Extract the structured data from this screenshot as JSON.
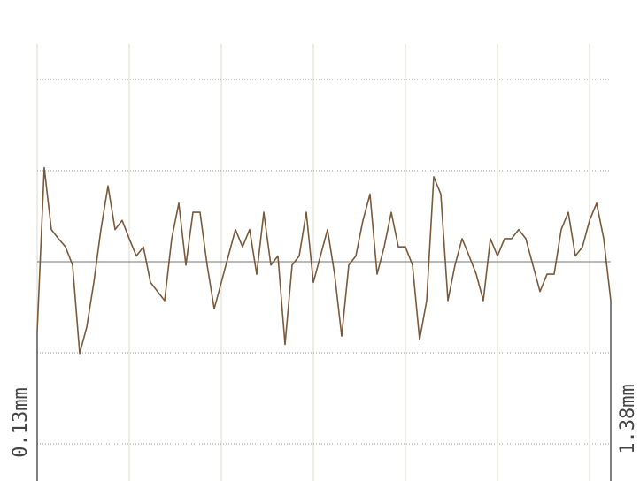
{
  "chart_data": {
    "type": "line",
    "y_label_left": "0.13mm",
    "y_label_right": "1.38mm",
    "ylim": [
      -2.41,
      2.87
    ],
    "series": [
      {
        "color": "#7a5a3a",
        "values": [
          -0.77,
          1.03,
          0.35,
          0.25,
          0.16,
          -0.04,
          -1.01,
          -0.72,
          -0.23,
          0.35,
          0.83,
          0.35,
          0.45,
          0.25,
          0.06,
          0.16,
          -0.23,
          -0.33,
          -0.43,
          0.25,
          0.64,
          -0.04,
          0.54,
          0.54,
          -0.04,
          -0.52,
          -0.23,
          0.06,
          0.35,
          0.16,
          0.35,
          -0.14,
          0.54,
          -0.04,
          0.06,
          -0.91,
          -0.04,
          0.06,
          0.54,
          -0.23,
          0.06,
          0.35,
          -0.14,
          -0.82,
          -0.04,
          0.06,
          0.45,
          0.74,
          -0.14,
          0.16,
          0.54,
          0.16,
          0.16,
          -0.04,
          -0.86,
          -0.43,
          0.93,
          0.74,
          -0.43,
          -0.04,
          0.25,
          0.06,
          -0.14,
          -0.43,
          0.25,
          0.06,
          0.25,
          0.25,
          0.35,
          0.25,
          -0.04,
          -0.33,
          -0.14,
          -0.14,
          0.35,
          0.54,
          0.06,
          0.16,
          0.45,
          0.64,
          0.25,
          -0.43
        ]
      }
    ]
  }
}
